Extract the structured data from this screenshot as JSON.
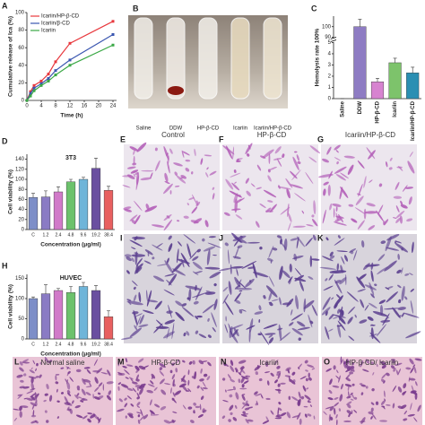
{
  "panel_letters": [
    "A",
    "B",
    "C",
    "D",
    "E",
    "F",
    "G",
    "H",
    "I",
    "J",
    "K",
    "L",
    "M",
    "N",
    "O"
  ],
  "tubes": {
    "labels": [
      "Saline",
      "DDW",
      "HP-β-CD",
      "Icariin",
      "Icariin/HP-β-CD"
    ]
  },
  "cell_images": {
    "columns": [
      "Control",
      "HP-β-CD",
      "Icariin/HP-β-CD"
    ]
  },
  "tissue_images": {
    "labels": [
      "Normal saline",
      "HP-β-CD",
      "Icariin",
      "HP-β-CD/ Icariin"
    ]
  },
  "chart_data": [
    {
      "type": "line",
      "ylabel": "Cumulative release of Ica (%)",
      "xlabel": "Time (h)",
      "x": [
        0,
        1,
        2,
        4,
        6,
        8,
        12,
        24
      ],
      "xlim": [
        0,
        25
      ],
      "xticks": [
        0,
        4,
        8,
        12,
        16,
        20,
        24
      ],
      "ylim": [
        0,
        100
      ],
      "yticks": [
        0,
        20,
        40,
        60,
        80,
        100
      ],
      "legend": "upper left",
      "series": [
        {
          "name": "Icariin/HP-β-CD",
          "color": "#e8383d",
          "values": [
            0,
            10,
            17,
            22,
            30,
            44,
            65,
            90
          ]
        },
        {
          "name": "Icariin/β-CD",
          "color": "#3a56b0",
          "values": [
            0,
            8,
            14,
            19,
            25,
            34,
            46,
            75
          ]
        },
        {
          "name": "Icariin",
          "color": "#3aa845",
          "values": [
            0,
            5,
            11,
            17,
            22,
            29,
            40,
            63
          ]
        }
      ]
    },
    {
      "type": "bar",
      "ylabel": "Hemolysis rate 100%",
      "categories": [
        "Saline",
        "DDW",
        "HP-β-CD",
        "Icariin",
        "Icariin/HP-β-CD"
      ],
      "values": [
        0,
        100,
        1.5,
        3.2,
        2.3
      ],
      "errors": [
        0,
        7,
        0.3,
        0.4,
        0.5
      ],
      "colors": [
        "#ffffff",
        "#8e7cc3",
        "#d783d0",
        "#7dc36b",
        "#2a8fb3"
      ],
      "ylim": [
        0,
        110
      ],
      "axis_break": [
        5,
        90
      ],
      "yticks": [
        0,
        1,
        2,
        3,
        4,
        5,
        90,
        100
      ],
      "rotate_labels": true
    },
    {
      "type": "bar",
      "title": "3T3",
      "ylabel": "Cell viability (%)",
      "xlabel": "Concentration (μg/ml)",
      "categories": [
        "C",
        "1.2",
        "2.4",
        "4.8",
        "9.6",
        "19.2",
        "38.4"
      ],
      "values": [
        64,
        65,
        75,
        95,
        100,
        122,
        78
      ],
      "errors": [
        8,
        12,
        10,
        5,
        4,
        20,
        8
      ],
      "colors": [
        "#7d8ec8",
        "#8a7bc4",
        "#d17ac9",
        "#6cc26c",
        "#6fb5d9",
        "#6a4fa0",
        "#e86060"
      ],
      "ylim": [
        0,
        150
      ],
      "yticks": [
        0,
        20,
        40,
        60,
        80,
        100,
        120,
        140
      ]
    },
    {
      "type": "bar",
      "title": "HUVEC",
      "ylabel": "Cell viability (%)",
      "xlabel": "Concentration (μg/ml)",
      "categories": [
        "C",
        "1.2",
        "2.4",
        "4.8",
        "9.6",
        "19.2",
        "38.4"
      ],
      "values": [
        100,
        112,
        120,
        115,
        130,
        120,
        55
      ],
      "errors": [
        4,
        22,
        5,
        15,
        10,
        12,
        15
      ],
      "colors": [
        "#7d8ec8",
        "#8a7bc4",
        "#d17ac9",
        "#6cc26c",
        "#6fb5d9",
        "#6a4fa0",
        "#e86060"
      ],
      "ylim": [
        0,
        160
      ],
      "yticks": [
        0,
        50,
        100,
        150
      ]
    }
  ]
}
